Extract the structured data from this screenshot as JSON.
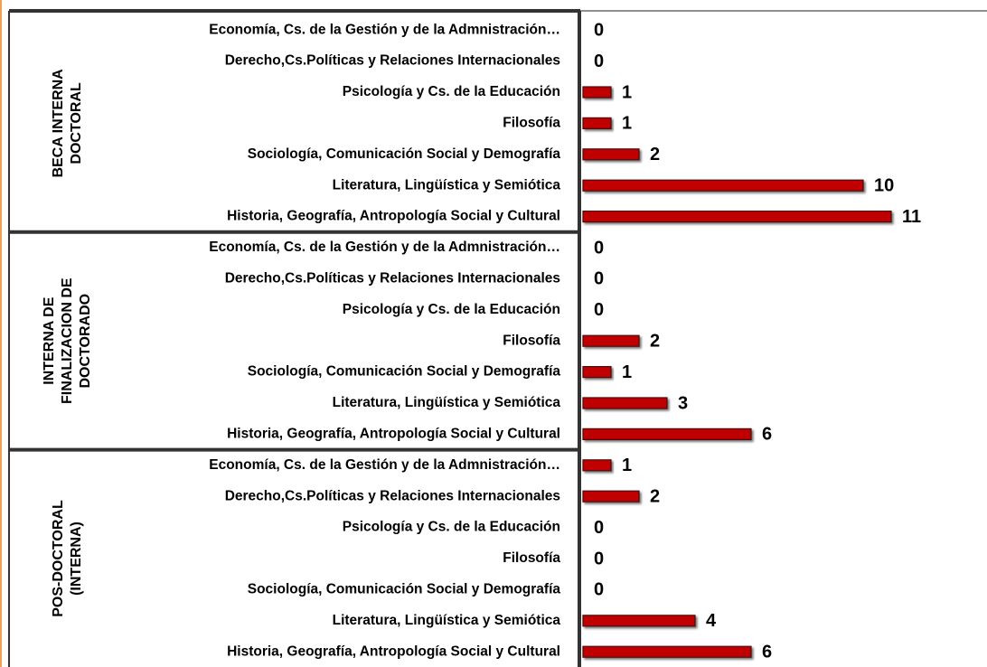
{
  "chart_data": {
    "type": "bar",
    "color": "#c00000",
    "xlim": [
      0,
      12
    ],
    "groups": [
      {
        "name": [
          "BECA INTERNA",
          "DOCTORAL"
        ],
        "categories": [
          "Economía, Cs. de la Gestión y de la Admnistración…",
          "Derecho,Cs.Políticas y Relaciones Internacionales",
          "Psicología y Cs. de la Educación",
          "Filosofía",
          "Sociología, Comunicación Social y Demografía",
          "Literatura, Lingüística y Semiótica",
          "Historia, Geografía, Antropología Social y Cultural"
        ],
        "values": [
          0,
          0,
          1,
          1,
          2,
          10,
          11
        ]
      },
      {
        "name": [
          "INTERNA DE",
          "FINALIZACION DE",
          "DOCTORADO"
        ],
        "categories": [
          "Economía, Cs. de la Gestión y de la Admnistración…",
          "Derecho,Cs.Políticas y Relaciones Internacionales",
          "Psicología y Cs. de la Educación",
          "Filosofía",
          "Sociología, Comunicación Social y Demografía",
          "Literatura, Lingüística y Semiótica",
          "Historia, Geografía, Antropología Social y Cultural"
        ],
        "values": [
          0,
          0,
          0,
          2,
          1,
          3,
          6
        ]
      },
      {
        "name": [
          "POS-DOCTORAL",
          "(INTERNA)"
        ],
        "categories": [
          "Economía, Cs. de la Gestión y de la Admnistración…",
          "Derecho,Cs.Políticas y Relaciones Internacionales",
          "Psicología y Cs. de la Educación",
          "Filosofía",
          "Sociología, Comunicación Social y Demografía",
          "Literatura, Lingüística y Semiótica",
          "Historia, Geografía, Antropología Social y Cultural"
        ],
        "values": [
          1,
          2,
          0,
          0,
          0,
          4,
          6
        ]
      }
    ]
  }
}
